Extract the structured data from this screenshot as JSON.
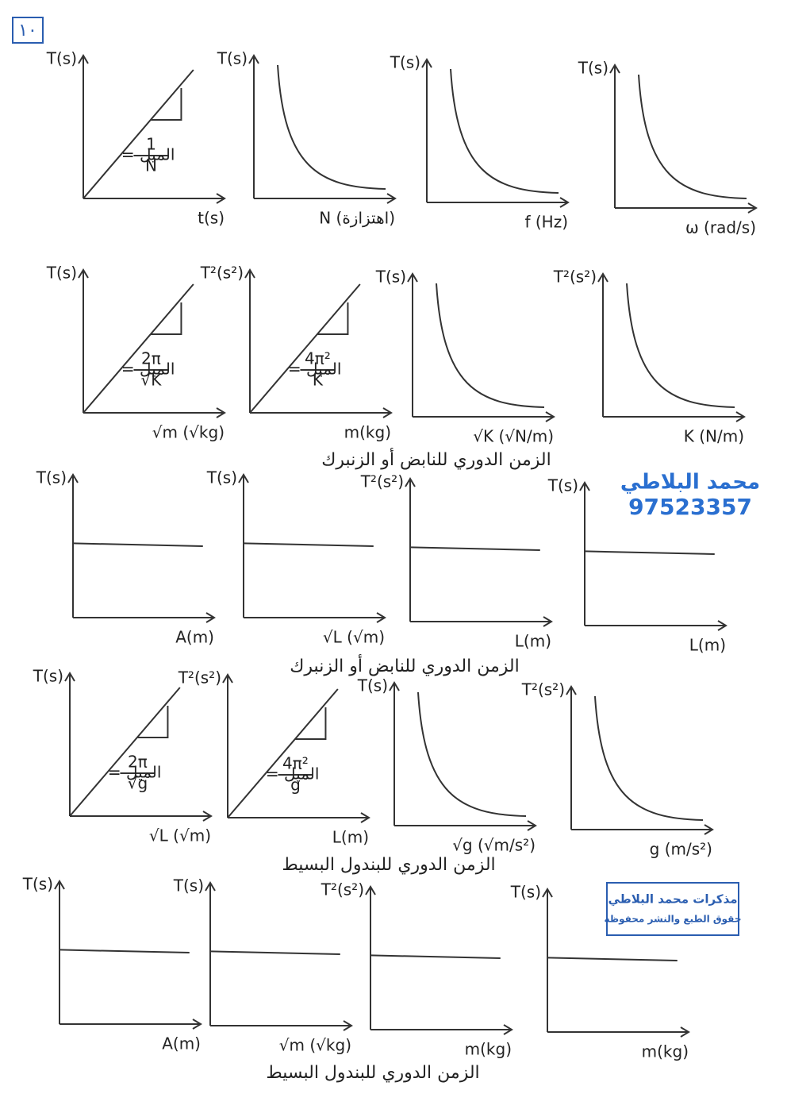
{
  "page_number": "١٠",
  "rows": [
    {
      "graphs": [
        {
          "shape": "linear",
          "y_label": "T(s)",
          "x_label": "t(s)",
          "slope": {
            "label": "الميل =",
            "numerator": "1",
            "denominator": "N"
          }
        },
        {
          "shape": "inverse",
          "y_label": "T(s)",
          "x_label": "N (اهتزازة)"
        },
        {
          "shape": "inverse",
          "y_label": "T(s)",
          "x_label": "f (Hz)"
        },
        {
          "shape": "inverse",
          "y_label": "T(s)",
          "x_label": "ω (rad/s)"
        }
      ]
    },
    {
      "graphs": [
        {
          "shape": "linear",
          "y_label": "T(s)",
          "x_label": "√m (√kg)",
          "slope": {
            "label": "الميل =",
            "numerator": "2π",
            "denominator": "√K"
          }
        },
        {
          "shape": "linear",
          "y_label": "T²(s²)",
          "x_label": "m(kg)",
          "slope": {
            "label": "الميل =",
            "numerator": "4π²",
            "denominator": "K"
          }
        },
        {
          "shape": "inverse",
          "y_label": "T(s)",
          "x_label": "√K (√N/m)"
        },
        {
          "shape": "inverse",
          "y_label": "T²(s²)",
          "x_label": "K (N/m)"
        }
      ],
      "caption": "الزمن الدوري للنابض أو الزنبرك"
    },
    {
      "graphs": [
        {
          "shape": "flat",
          "y_label": "T(s)",
          "x_label": "A(m)"
        },
        {
          "shape": "flat",
          "y_label": "T(s)",
          "x_label": "√L (√m)"
        },
        {
          "shape": "flat",
          "y_label": "T²(s²)",
          "x_label": "L(m)"
        },
        {
          "shape": "flat",
          "y_label": "T(s)",
          "x_label": "L(m)"
        }
      ],
      "caption": "الزمن الدوري للنابض أو الزنبرك"
    },
    {
      "graphs": [
        {
          "shape": "linear",
          "y_label": "T(s)",
          "x_label": "√L (√m)",
          "slope": {
            "label": "الميل =",
            "numerator": "2π",
            "denominator": "√g"
          }
        },
        {
          "shape": "linear",
          "y_label": "T²(s²)",
          "x_label": "L(m)",
          "slope": {
            "label": "الميل =",
            "numerator": "4π²",
            "denominator": "g"
          }
        },
        {
          "shape": "inverse",
          "y_label": "T(s)",
          "x_label": "√g (√m/s²)"
        },
        {
          "shape": "inverse",
          "y_label": "T²(s²)",
          "x_label": "g (m/s²)"
        }
      ],
      "caption": "الزمن الدوري للبندول البسيط"
    },
    {
      "graphs": [
        {
          "shape": "flat",
          "y_label": "T(s)",
          "x_label": "A(m)"
        },
        {
          "shape": "flat",
          "y_label": "T(s)",
          "x_label": "√m (√kg)"
        },
        {
          "shape": "flat",
          "y_label": "T²(s²)",
          "x_label": "m(kg)"
        },
        {
          "shape": "flat",
          "y_label": "T(s)",
          "x_label": "m(kg)"
        }
      ],
      "caption": "الزمن الدوري للبندول البسيط"
    }
  ],
  "watermark": {
    "name": "محمد البلاطي",
    "phone": "97523357"
  },
  "stamp": {
    "line1": "مذكرات محمد البلاطي",
    "line2": "حقوق الطبع والنشر محفوظة"
  }
}
